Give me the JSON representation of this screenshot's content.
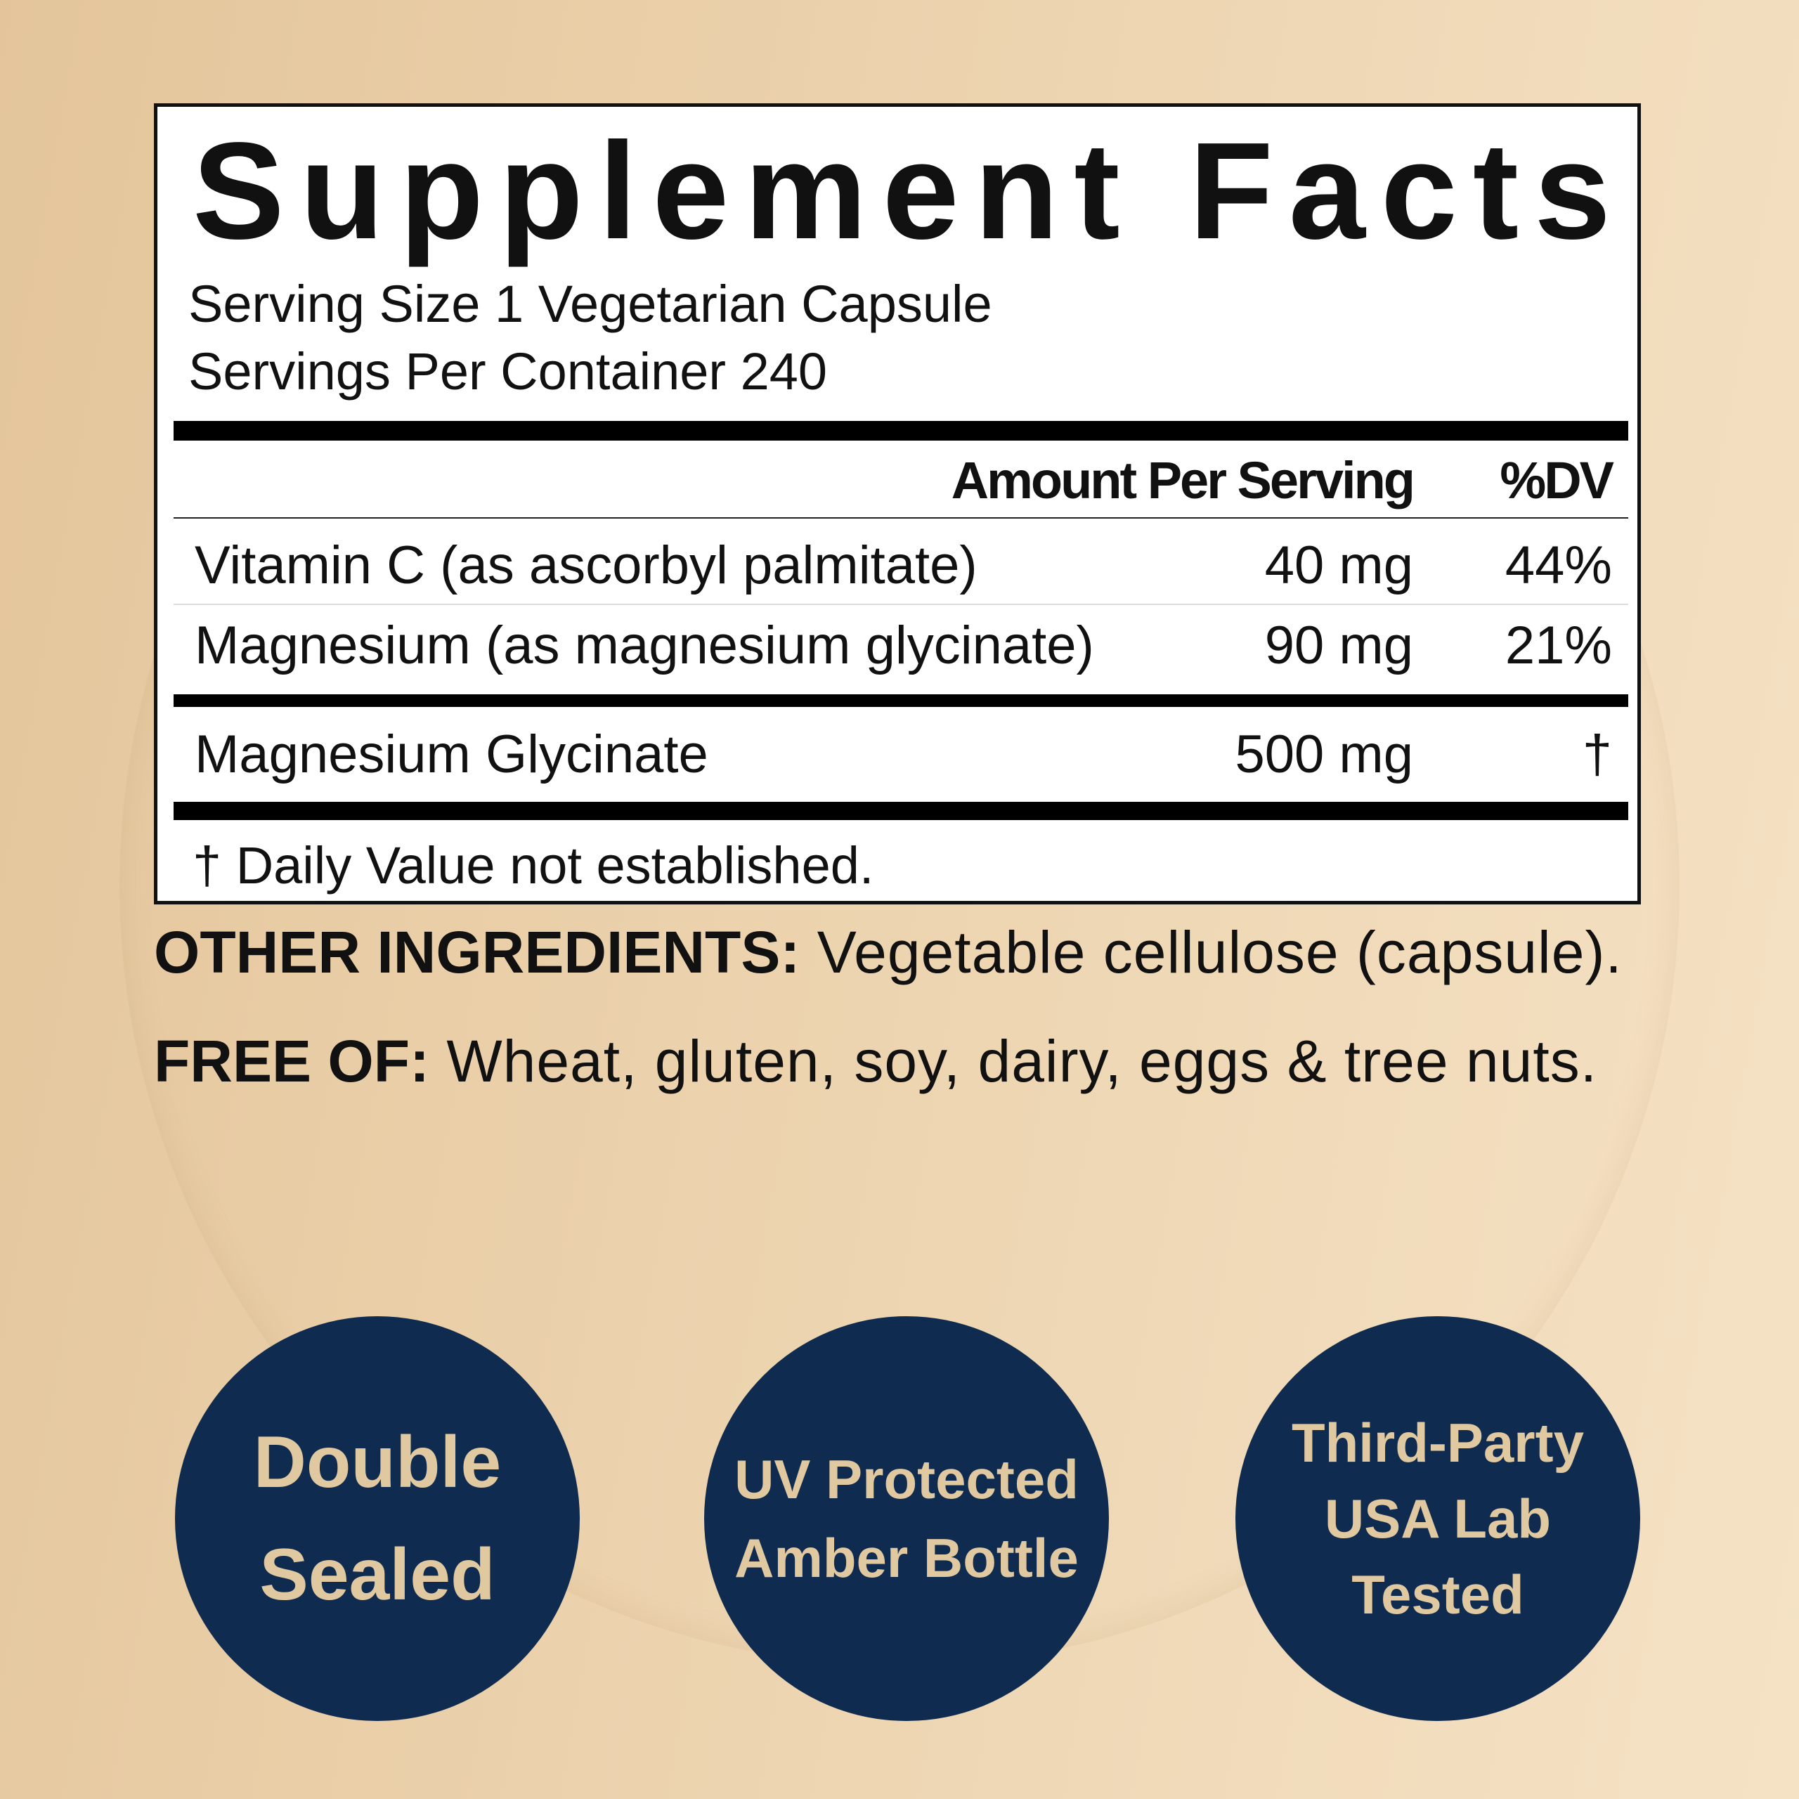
{
  "title": "Supplement Facts",
  "serving_size": "Serving Size 1 Vegetarian Capsule",
  "servings_per_container": "Servings Per Container 240",
  "table": {
    "header_amount": "Amount Per Serving",
    "header_dv": "%DV",
    "rows": [
      {
        "name": "Vitamin C (as ascorbyl palmitate)",
        "amount": "40 mg",
        "dv": "44%"
      },
      {
        "name": "Magnesium (as magnesium glycinate)",
        "amount": "90 mg",
        "dv": "21%"
      },
      {
        "name": "Magnesium Glycinate",
        "amount": "500 mg",
        "dv": "†"
      }
    ],
    "footnote": "† Daily Value not established."
  },
  "other_ingredients": {
    "label": "OTHER INGREDIENTS:",
    "text": " Vegetable cellulose (capsule)."
  },
  "free_of": {
    "label": "FREE OF:",
    "text": " Wheat, gluten, soy, dairy, eggs & tree nuts."
  },
  "badges": [
    {
      "lines": [
        "Double",
        "Sealed"
      ]
    },
    {
      "lines": [
        "UV Protected",
        "Amber Bottle"
      ]
    },
    {
      "lines": [
        "Third-Party",
        "USA Lab",
        "Tested"
      ]
    }
  ],
  "colors": {
    "badge_bg": "#0f2b4f",
    "badge_text": "#e0c8a0",
    "background": "#ecd3ae"
  }
}
